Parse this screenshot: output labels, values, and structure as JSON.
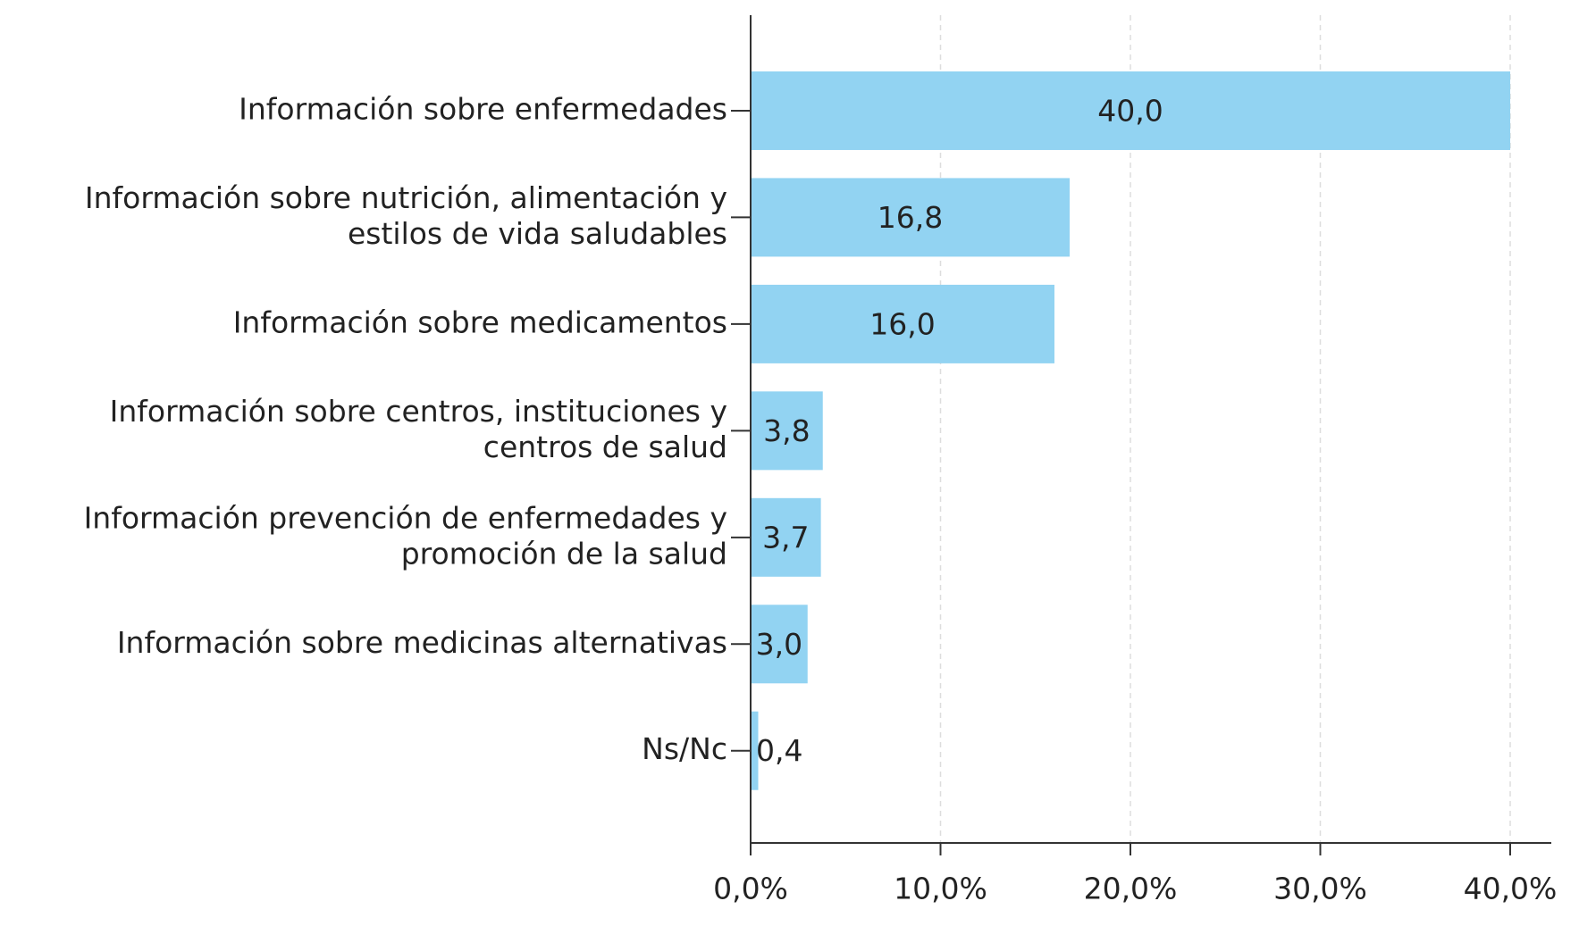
{
  "chart_data": {
    "type": "barh",
    "categories": [
      [
        "Información sobre enfermedades"
      ],
      [
        "Información sobre nutrición, alimentación y",
        "estilos de vida saludables"
      ],
      [
        "Información sobre medicamentos"
      ],
      [
        "Información sobre centros, instituciones y",
        "centros de salud"
      ],
      [
        "Información prevención de enfermedades y",
        "promoción de la salud"
      ],
      [
        "Información sobre medicinas alternativas"
      ],
      [
        "Ns/Nc"
      ]
    ],
    "values": [
      40.0,
      16.8,
      16.0,
      3.8,
      3.7,
      3.0,
      0.4
    ],
    "value_labels": [
      "40,0",
      "16,8",
      "16,0",
      "3,8",
      "3,7",
      "3,0",
      "0,4"
    ],
    "color": "#92d3f2",
    "xlim": [
      0,
      42
    ],
    "xticks": [
      {
        "value": 0,
        "label": "0,0%"
      },
      {
        "value": 10,
        "label": "10,0%"
      },
      {
        "value": 20,
        "label": "20,0%"
      },
      {
        "value": 30,
        "label": "30,0%"
      },
      {
        "value": 40,
        "label": "40,0%"
      }
    ],
    "grid": true
  }
}
